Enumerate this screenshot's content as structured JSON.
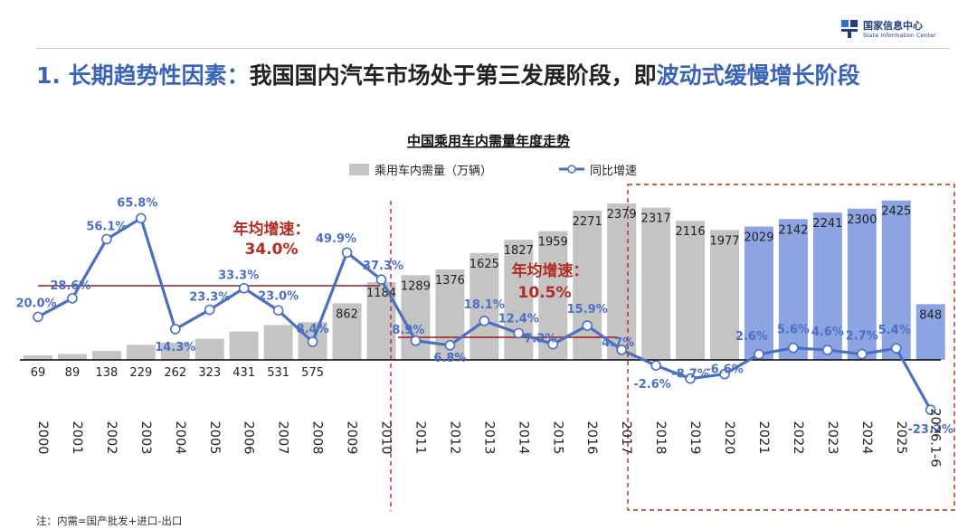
{
  "logo": {
    "cn": "国家信息中心",
    "en": "State Information Center"
  },
  "headline": {
    "part1": "1. 长期趋势性因素：",
    "part2": "我国国内汽车市场处于第三发展阶段，即",
    "part3": "波动式缓慢增长阶段"
  },
  "colors": {
    "bar_gray": "#c4c4c4",
    "bar_blue": "#8da4e3",
    "line_blue": "#4a6fc4",
    "label_red": "#b52a22",
    "red_line": "#9e1a1a"
  },
  "chart_data": {
    "type": "bar",
    "title": "中国乘用车内需量年度走势",
    "categories": [
      "2000",
      "2001",
      "2002",
      "2003",
      "2004",
      "2005",
      "2006",
      "2007",
      "2008",
      "2009",
      "2010",
      "2011",
      "2012",
      "2013",
      "2014",
      "2015",
      "2016",
      "2017",
      "2018",
      "2019",
      "2020",
      "2021",
      "2022",
      "2023",
      "2024",
      "2025",
      "2026.1-6"
    ],
    "series": [
      {
        "name": "乘用车内需量（万辆）",
        "type": "bar",
        "values": [
          69,
          89,
          138,
          229,
          262,
          323,
          431,
          531,
          575,
          862,
          1184,
          1289,
          1376,
          1625,
          1827,
          1959,
          2271,
          2379,
          2317,
          2116,
          1977,
          2029,
          2142,
          2241,
          2300,
          2425,
          848
        ],
        "labels": [
          "69",
          "89",
          "138",
          "229",
          "262",
          "323",
          "431",
          "531",
          "575",
          "862",
          "1184",
          "1289",
          "1376",
          "1625",
          "1827",
          "1959",
          "2271",
          "2379",
          "2317",
          "2116",
          "1977",
          "2029",
          "2142",
          "2241",
          "2300",
          "2425",
          "848"
        ]
      },
      {
        "name": "同比增速",
        "type": "line",
        "values": [
          20.0,
          28.6,
          56.1,
          65.8,
          14.3,
          23.3,
          33.3,
          23.0,
          8.4,
          49.9,
          37.3,
          8.9,
          6.8,
          18.1,
          12.4,
          7.3,
          15.9,
          4.7,
          -2.6,
          -8.7,
          -6.6,
          2.6,
          5.6,
          4.6,
          2.7,
          5.4,
          -23.2
        ],
        "labels": [
          "20.0%",
          "28.6%",
          "56.1%",
          "65.8%",
          "14.3%",
          "23.3%",
          "33.3%",
          "23.0%",
          "8.4%",
          "49.9%",
          "37.3%",
          "8.9%",
          "6.8%",
          "18.1%",
          "12.4%",
          "7.3%",
          "15.9%",
          "4.7%",
          "-2.6%",
          "-8.7%",
          "-6.6%",
          "2.6%",
          "5.6%",
          "4.6%",
          "2.7%",
          "5.4%",
          "-23.2%"
        ]
      }
    ],
    "annotations": [
      {
        "title": "年均增速：",
        "value": "34.0%",
        "period": "2000-2010",
        "avg": 34.0
      },
      {
        "title": "年均增速：",
        "value": "10.5%",
        "period": "2011-2017",
        "avg": 10.5
      }
    ],
    "legend": {
      "placement": "top"
    },
    "grid": false
  },
  "footnote": "注：内需=国产批发+进口-出口"
}
